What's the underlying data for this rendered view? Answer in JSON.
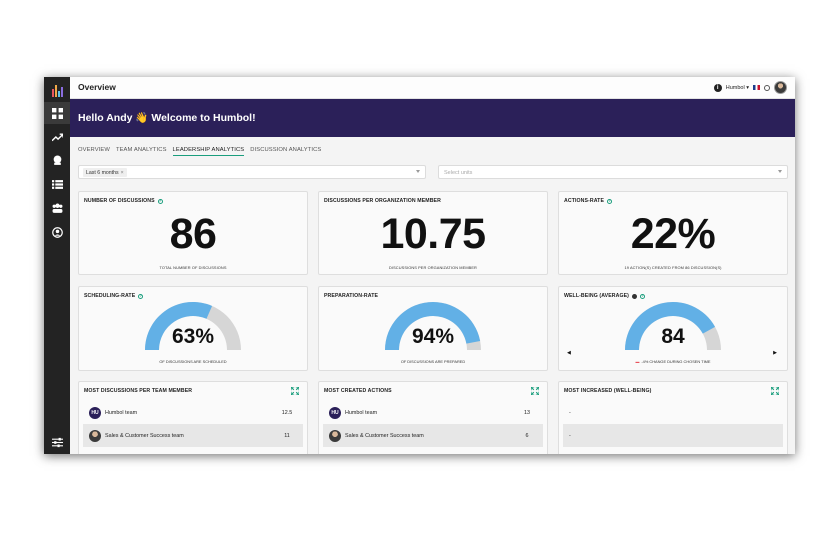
{
  "header": {
    "title": "Overview",
    "org": "Humbol",
    "org_caret": "▾"
  },
  "banner": {
    "greeting": "Hello Andy 👋 Welcome to Humbol!"
  },
  "tabs": [
    {
      "label": "OVERVIEW"
    },
    {
      "label": "TEAM ANALYTICS"
    },
    {
      "label": "LEADERSHIP ANALYTICS"
    },
    {
      "label": "DISCUSSION ANALYTICS"
    }
  ],
  "filters": {
    "period_chip": "Last 6 months",
    "period_chip_remove": "×",
    "units_placeholder": "Select units"
  },
  "cards": {
    "discussions": {
      "title": "NUMBER OF DISCUSSIONS",
      "value": "86",
      "caption": "TOTAL NUMBER OF DISCUSSIONS"
    },
    "per_member": {
      "title": "DISCUSSIONS PER ORGANIZATION MEMBER",
      "value": "10.75",
      "caption": "DISCUSSIONS PER ORGANIZATION MEMBER"
    },
    "actions_rate": {
      "title": "ACTIONS-RATE",
      "value": "22%",
      "caption": "19 ACTION(S) CREATED FROM 86 DISCUSSION(S)"
    },
    "scheduling_rate": {
      "title": "SCHEDULING-RATE",
      "value": "63%",
      "fraction": 0.63,
      "caption": "OF DISCUSSIONS ARE SCHEDULED"
    },
    "preparation_rate": {
      "title": "PREPARATION-RATE",
      "value": "94%",
      "fraction": 0.94,
      "caption": "OF DISCUSSIONS ARE PREPARED"
    },
    "wellbeing": {
      "title": "WELL-BEING (AVERAGE)",
      "value": "84",
      "fraction": 0.84,
      "caption": "-4% CHANGE DURING CHOSEN TIME",
      "prev": "◀",
      "next": "▶"
    }
  },
  "lists": {
    "most_discussions": {
      "title": "MOST DISCUSSIONS PER TEAM MEMBER",
      "rows": [
        {
          "initials": "HU",
          "name": "Humbol team",
          "value": "12.5"
        },
        {
          "initials": "",
          "name": "Sales & Customer Success team",
          "value": "11"
        }
      ]
    },
    "most_actions": {
      "title": "MOST CREATED ACTIONS",
      "rows": [
        {
          "initials": "HU",
          "name": "Humbol team",
          "value": "13"
        },
        {
          "initials": "",
          "name": "Sales & Customer Success team",
          "value": "6"
        }
      ]
    },
    "most_increased": {
      "title": "MOST INCREASED (WELL-BEING)",
      "rows": [
        {
          "name": "-"
        },
        {
          "name": "-"
        }
      ]
    }
  },
  "colors": {
    "sidebar": "#232323",
    "banner": "#2b2059",
    "accent": "#1a9e7d",
    "gauge_fill": "#62b0e6",
    "gauge_track": "#d6d6d6"
  },
  "icons": [
    "dashboard-icon",
    "trending-icon",
    "discussion-icon",
    "list-icon",
    "team-icon",
    "profile-icon",
    "settings-sliders-icon"
  ]
}
